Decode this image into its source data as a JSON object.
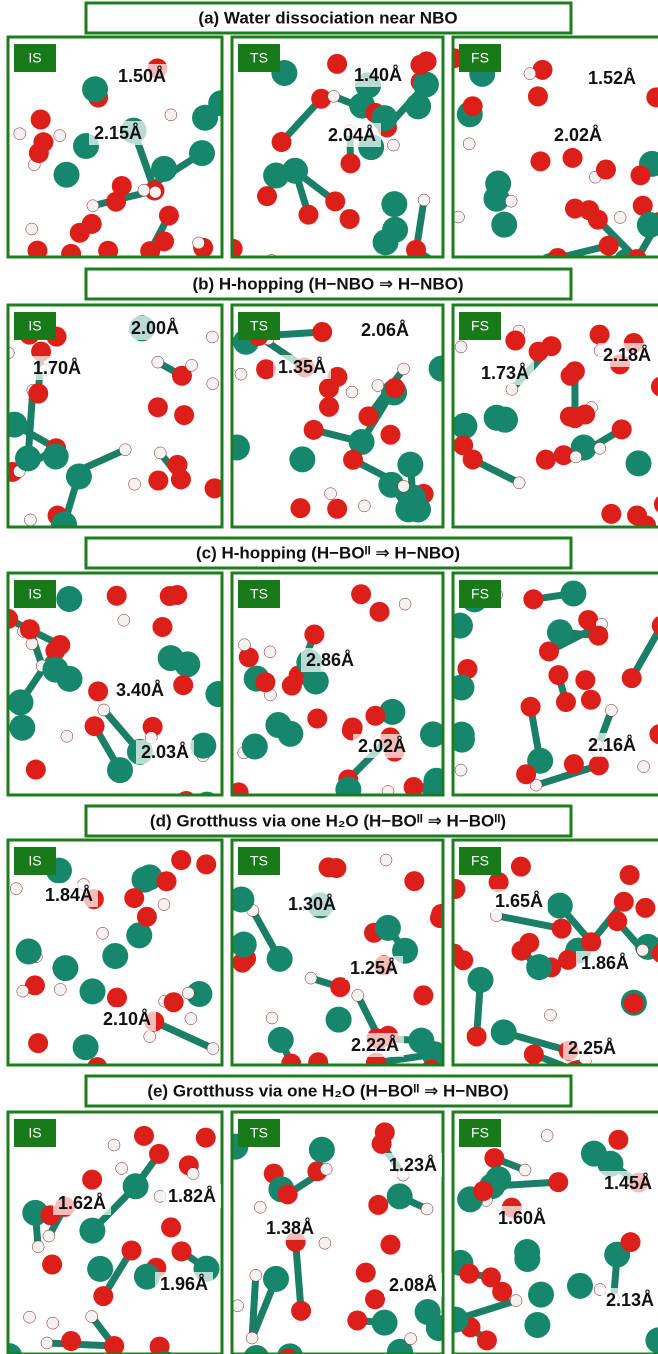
{
  "panels": [
    {
      "title": "(a) Water dissociation near NBO",
      "states": [
        {
          "label": "IS",
          "distances": [
            "1.50Å",
            "2.15Å"
          ]
        },
        {
          "label": "TS",
          "distances": [
            "1.40Å",
            "2.04Å"
          ]
        },
        {
          "label": "FS",
          "distances": [
            "1.52Å",
            "2.02Å"
          ]
        }
      ]
    },
    {
      "title": "(b) H-hopping (H−NBO ⇒ H−NBO)",
      "states": [
        {
          "label": "IS",
          "distances": [
            "1.70Å",
            "2.00Å"
          ]
        },
        {
          "label": "TS",
          "distances": [
            "1.35Å",
            "2.06Å"
          ]
        },
        {
          "label": "FS",
          "distances": [
            "1.73Å",
            "2.18Å"
          ]
        }
      ]
    },
    {
      "title": "(c) H-hopping (H−BOᴵᴵ ⇒ H−NBO)",
      "states": [
        {
          "label": "IS",
          "distances": [
            "3.40Å",
            "2.03Å"
          ]
        },
        {
          "label": "TS",
          "distances": [
            "2.86Å",
            "2.02Å"
          ]
        },
        {
          "label": "FS",
          "distances": [
            "2.16Å"
          ]
        }
      ]
    },
    {
      "title": "(d) Grotthuss via one H₂O (H−BOᴵᴵ ⇒ H−BOᴵᴵ)",
      "states": [
        {
          "label": "IS",
          "distances": [
            "1.84Å",
            "2.10Å"
          ]
        },
        {
          "label": "TS",
          "distances": [
            "1.30Å",
            "1.25Å",
            "2.22Å"
          ]
        },
        {
          "label": "FS",
          "distances": [
            "1.65Å",
            "1.86Å",
            "2.25Å"
          ]
        }
      ]
    },
    {
      "title": "(e) Grotthuss via one H₂O (H−BOᴵᴵ ⇒ H−NBO)",
      "states": [
        {
          "label": "IS",
          "distances": [
            "1.62Å",
            "1.82Å",
            "1.96Å"
          ]
        },
        {
          "label": "TS",
          "distances": [
            "1.38Å",
            "1.23Å",
            "2.08Å"
          ]
        },
        {
          "label": "FS",
          "distances": [
            "1.60Å",
            "1.45Å",
            "2.13Å"
          ]
        }
      ]
    }
  ]
}
